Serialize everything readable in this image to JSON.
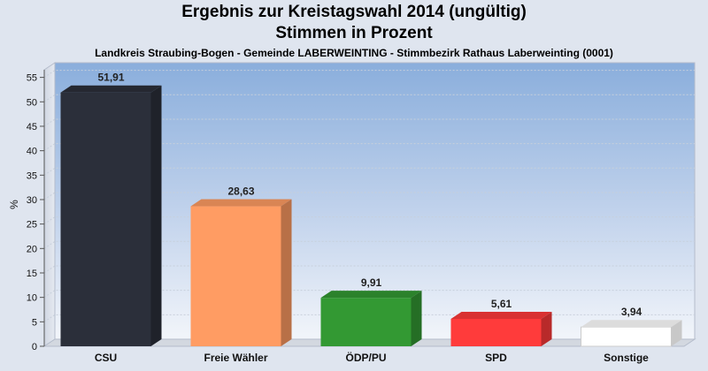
{
  "chart_data": {
    "type": "bar",
    "title": "Ergebnis zur Kreistagswahl 2014 (ungültig)",
    "title_line2": "Stimmen in Prozent",
    "subtitle": "Landkreis Straubing-Bogen - Gemeinde LABERWEINTING - Stimmbezirk Rathaus Laberweinting (0001)",
    "ylabel": "%",
    "xlabel": "",
    "ylim": [
      0,
      58
    ],
    "yticks": [
      0,
      5,
      10,
      15,
      20,
      25,
      30,
      35,
      40,
      45,
      50,
      55
    ],
    "grid": true,
    "categories": [
      "CSU",
      "Freie Wähler",
      "ÖDP/PU",
      "SPD",
      "Sonstige"
    ],
    "values": [
      51.91,
      28.63,
      9.91,
      5.61,
      3.94
    ],
    "value_labels": [
      "51,91",
      "28,63",
      "9,91",
      "5,61",
      "3,94"
    ],
    "colors": [
      "#2b2f3a",
      "#ff9c63",
      "#339933",
      "#ff3b3b",
      "#ffffff"
    ]
  }
}
